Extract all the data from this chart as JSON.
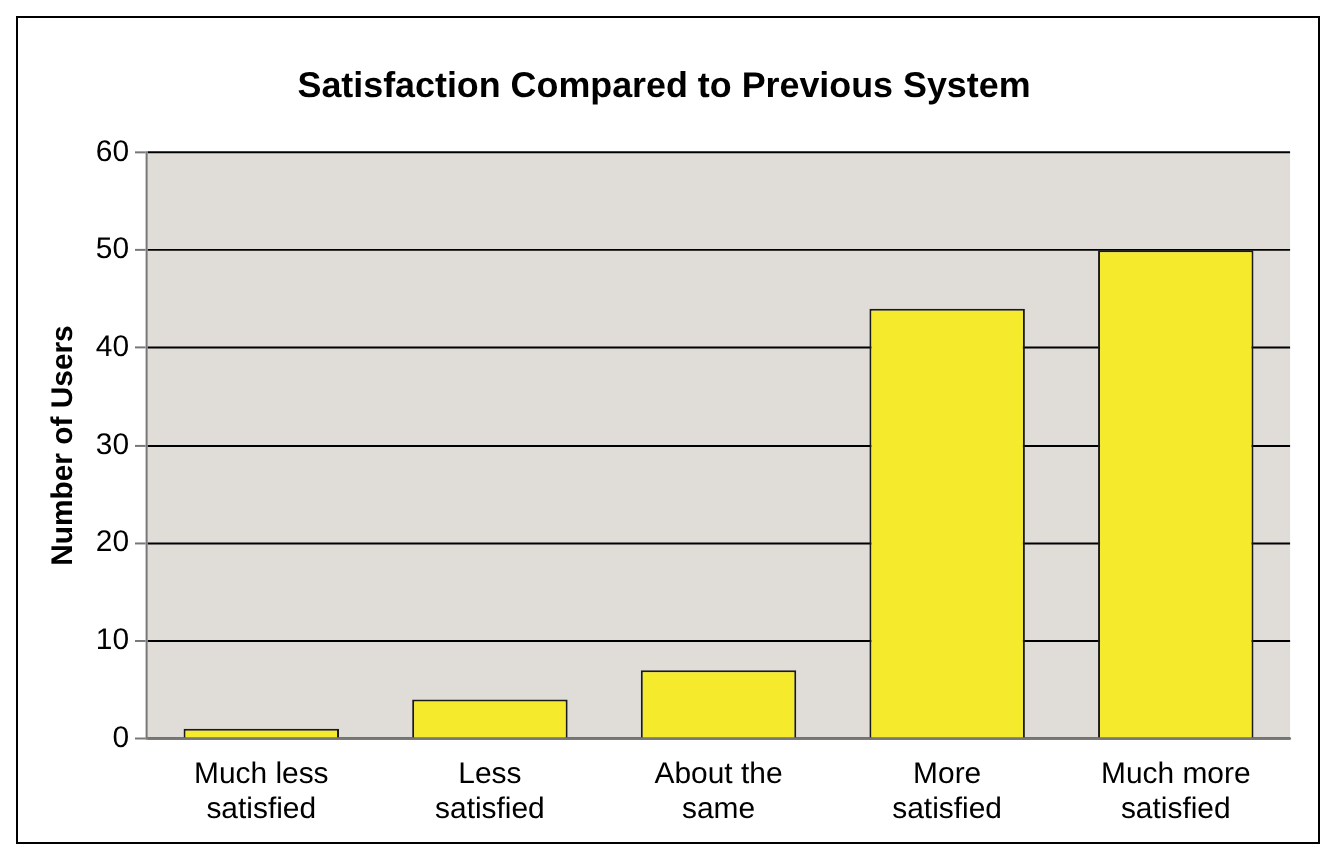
{
  "chart_data": {
    "type": "bar",
    "title": "Satisfaction Compared to Previous System",
    "ylabel": "Number of Users",
    "categories": [
      "Much less satisfied",
      "Less satisfied",
      "About the same",
      "More satisfied",
      "Much more satisfied"
    ],
    "values": [
      1,
      4,
      7,
      44,
      50
    ],
    "color": "#f5eb2c",
    "ylim": [
      0,
      60
    ],
    "yticks": [
      0,
      10,
      20,
      30,
      40,
      50,
      60
    ],
    "grid": "y"
  }
}
